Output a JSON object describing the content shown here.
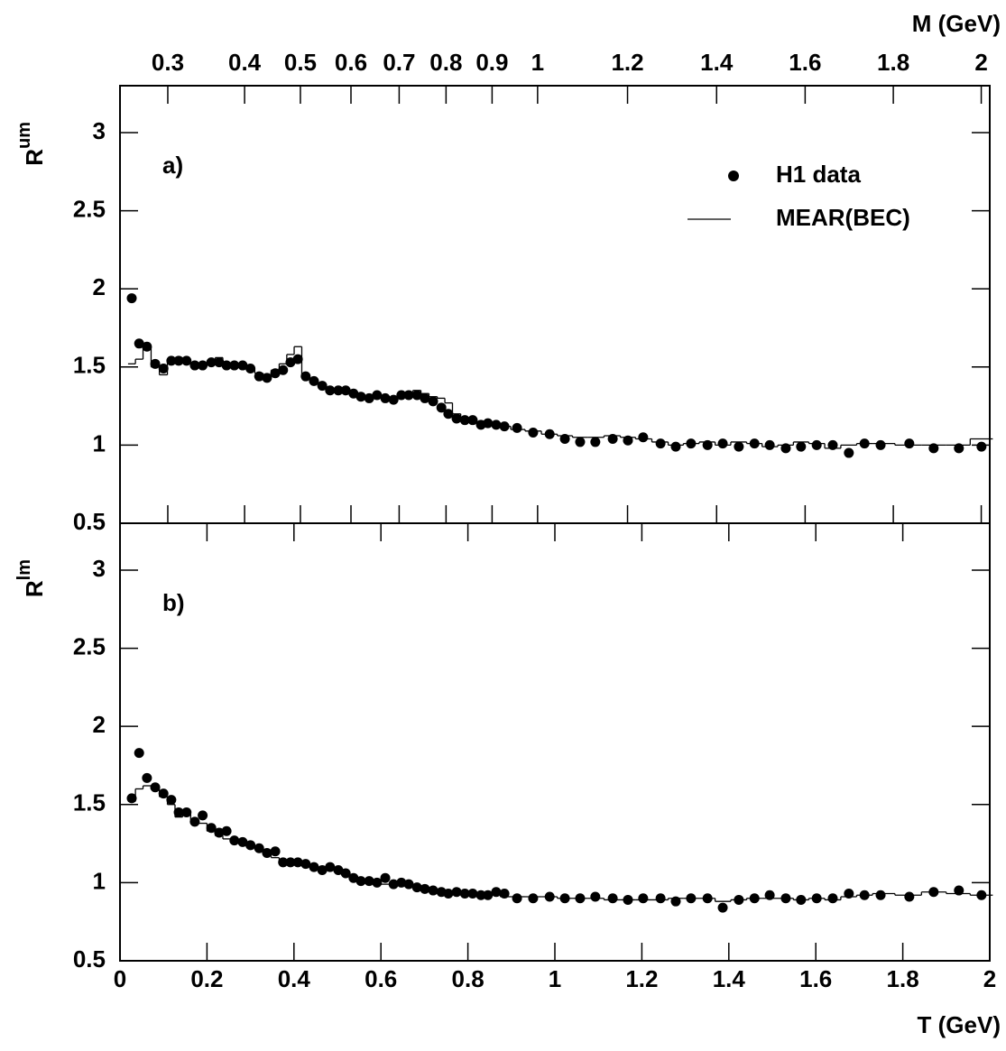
{
  "chart_data": [
    {
      "type": "scatter",
      "label": "a)",
      "ylabel": "R",
      "ylabel_sup": "um",
      "x2label": "M (GeV)",
      "x2ticks": [
        0.3,
        0.4,
        0.5,
        0.6,
        0.7,
        0.8,
        0.9,
        1,
        1.2,
        1.4,
        1.6,
        1.8,
        2
      ],
      "xlim": [
        0,
        2
      ],
      "ylim": [
        0.5,
        3.3
      ],
      "yticks": [
        0.5,
        1,
        1.5,
        2,
        2.5,
        3
      ],
      "legend": "upper right",
      "x": [
        0.027,
        0.044,
        0.062,
        0.081,
        0.1,
        0.118,
        0.135,
        0.153,
        0.172,
        0.19,
        0.21,
        0.228,
        0.245,
        0.263,
        0.282,
        0.3,
        0.32,
        0.338,
        0.357,
        0.375,
        0.392,
        0.409,
        0.427,
        0.446,
        0.465,
        0.483,
        0.502,
        0.519,
        0.537,
        0.554,
        0.573,
        0.591,
        0.61,
        0.629,
        0.647,
        0.664,
        0.683,
        0.701,
        0.72,
        0.739,
        0.755,
        0.774,
        0.793,
        0.811,
        0.83,
        0.846,
        0.865,
        0.884,
        0.913,
        0.95,
        0.988,
        1.023,
        1.058,
        1.093,
        1.133,
        1.168,
        1.203,
        1.243,
        1.278,
        1.313,
        1.351,
        1.386,
        1.423,
        1.459,
        1.494,
        1.531,
        1.566,
        1.602,
        1.639,
        1.676,
        1.712,
        1.749,
        1.815,
        1.871,
        1.929,
        1.981
      ],
      "series": [
        {
          "name": "H1 data",
          "color": "#000000",
          "style": "points",
          "values": [
            1.94,
            1.65,
            1.63,
            1.52,
            1.49,
            1.54,
            1.54,
            1.54,
            1.51,
            1.51,
            1.53,
            1.53,
            1.51,
            1.51,
            1.51,
            1.49,
            1.44,
            1.43,
            1.46,
            1.48,
            1.53,
            1.55,
            1.44,
            1.41,
            1.38,
            1.35,
            1.35,
            1.35,
            1.33,
            1.31,
            1.3,
            1.32,
            1.3,
            1.29,
            1.32,
            1.32,
            1.32,
            1.3,
            1.28,
            1.24,
            1.2,
            1.17,
            1.16,
            1.16,
            1.13,
            1.14,
            1.13,
            1.12,
            1.11,
            1.08,
            1.07,
            1.04,
            1.02,
            1.02,
            1.04,
            1.03,
            1.05,
            1.01,
            0.99,
            1.01,
            1.0,
            1.01,
            0.99,
            1.01,
            1.0,
            0.98,
            0.99,
            1.0,
            1.0,
            0.95,
            1.01,
            1.0,
            1.01,
            0.98,
            0.98,
            0.99
          ]
        },
        {
          "name": "MEAR(BEC)",
          "color": "#000000",
          "style": "step",
          "values": [
            1.52,
            1.55,
            1.63,
            1.5,
            1.45,
            1.55,
            1.56,
            1.55,
            1.52,
            1.52,
            1.54,
            1.56,
            1.52,
            1.51,
            1.52,
            1.49,
            1.46,
            1.45,
            1.48,
            1.52,
            1.58,
            1.63,
            1.43,
            1.4,
            1.38,
            1.36,
            1.35,
            1.36,
            1.34,
            1.31,
            1.3,
            1.32,
            1.3,
            1.29,
            1.33,
            1.34,
            1.35,
            1.33,
            1.31,
            1.3,
            1.27,
            1.2,
            1.17,
            1.17,
            1.15,
            1.15,
            1.14,
            1.12,
            1.1,
            1.09,
            1.07,
            1.06,
            1.05,
            1.05,
            1.06,
            1.05,
            1.04,
            1.02,
            1.0,
            1.01,
            1.02,
            1.0,
            1.02,
            1.01,
            0.99,
            1.0,
            1.02,
            1.01,
            0.98,
            1.0,
            1.01,
            1.01,
            1.0,
            1.0,
            1.0,
            1.04
          ]
        }
      ]
    },
    {
      "type": "scatter",
      "label": "b)",
      "ylabel": "R",
      "ylabel_sup": "lm",
      "xlabel": "T (GeV)",
      "xticks": [
        0,
        0.2,
        0.4,
        0.6,
        0.8,
        1,
        1.2,
        1.4,
        1.6,
        1.8,
        2
      ],
      "xlim": [
        0,
        2
      ],
      "ylim": [
        0.5,
        3.3
      ],
      "yticks": [
        0.5,
        1,
        1.5,
        2,
        2.5,
        3
      ],
      "x": [
        0.027,
        0.044,
        0.062,
        0.081,
        0.1,
        0.118,
        0.135,
        0.153,
        0.172,
        0.19,
        0.21,
        0.228,
        0.245,
        0.263,
        0.282,
        0.3,
        0.32,
        0.338,
        0.357,
        0.375,
        0.392,
        0.409,
        0.427,
        0.446,
        0.465,
        0.483,
        0.502,
        0.519,
        0.537,
        0.554,
        0.573,
        0.591,
        0.61,
        0.629,
        0.647,
        0.664,
        0.683,
        0.701,
        0.72,
        0.739,
        0.755,
        0.774,
        0.793,
        0.811,
        0.83,
        0.846,
        0.865,
        0.884,
        0.913,
        0.95,
        0.988,
        1.023,
        1.058,
        1.093,
        1.133,
        1.168,
        1.203,
        1.243,
        1.278,
        1.313,
        1.351,
        1.386,
        1.423,
        1.459,
        1.494,
        1.531,
        1.566,
        1.602,
        1.639,
        1.676,
        1.712,
        1.749,
        1.815,
        1.871,
        1.929,
        1.981
      ],
      "series": [
        {
          "color": "#000000",
          "style": "points",
          "values": [
            1.54,
            1.83,
            1.67,
            1.61,
            1.57,
            1.53,
            1.45,
            1.45,
            1.39,
            1.43,
            1.35,
            1.32,
            1.33,
            1.27,
            1.26,
            1.24,
            1.22,
            1.19,
            1.2,
            1.13,
            1.13,
            1.13,
            1.12,
            1.1,
            1.08,
            1.1,
            1.08,
            1.06,
            1.03,
            1.01,
            1.01,
            1.0,
            1.03,
            0.99,
            1.0,
            0.99,
            0.97,
            0.96,
            0.95,
            0.94,
            0.93,
            0.94,
            0.93,
            0.93,
            0.92,
            0.92,
            0.94,
            0.93,
            0.9,
            0.9,
            0.91,
            0.9,
            0.9,
            0.91,
            0.9,
            0.89,
            0.9,
            0.9,
            0.88,
            0.9,
            0.9,
            0.84,
            0.89,
            0.9,
            0.92,
            0.9,
            0.89,
            0.9,
            0.9,
            0.93,
            0.92,
            0.92,
            0.91,
            0.94,
            0.95,
            0.92
          ]
        },
        {
          "color": "#000000",
          "style": "step",
          "values": [
            1.52,
            1.6,
            1.62,
            1.6,
            1.55,
            1.5,
            1.42,
            1.45,
            1.4,
            1.38,
            1.33,
            1.3,
            1.28,
            1.27,
            1.25,
            1.24,
            1.21,
            1.19,
            1.16,
            1.14,
            1.14,
            1.12,
            1.11,
            1.1,
            1.09,
            1.08,
            1.07,
            1.05,
            1.03,
            1.02,
            1.0,
            1.0,
            0.99,
            0.99,
            0.99,
            0.98,
            0.97,
            0.96,
            0.95,
            0.94,
            0.94,
            0.93,
            0.93,
            0.93,
            0.93,
            0.92,
            0.92,
            0.91,
            0.91,
            0.91,
            0.91,
            0.9,
            0.9,
            0.9,
            0.89,
            0.89,
            0.89,
            0.89,
            0.9,
            0.9,
            0.9,
            0.88,
            0.89,
            0.9,
            0.9,
            0.9,
            0.89,
            0.9,
            0.89,
            0.91,
            0.92,
            0.93,
            0.92,
            0.94,
            0.93,
            0.92
          ]
        }
      ]
    }
  ]
}
